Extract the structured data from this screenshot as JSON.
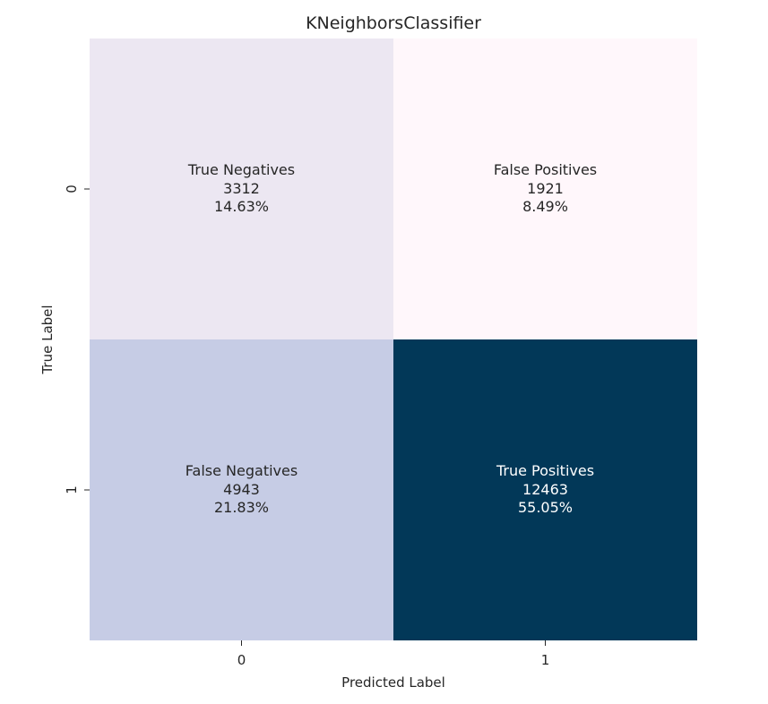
{
  "chart_data": {
    "type": "heatmap",
    "title": "KNeighborsClassifier",
    "xlabel": "Predicted Label",
    "ylabel": "True Label",
    "x_categories": [
      "0",
      "1"
    ],
    "y_categories": [
      "0",
      "1"
    ],
    "cells": [
      {
        "row": 0,
        "col": 0,
        "name": "True Negatives",
        "count": "3312",
        "percent": "14.63%",
        "value": 3312,
        "color": "#ece7f2",
        "text_color": "#262626"
      },
      {
        "row": 0,
        "col": 1,
        "name": "False Positives",
        "count": "1921",
        "percent": "8.49%",
        "value": 1921,
        "color": "#fff7fb",
        "text_color": "#262626"
      },
      {
        "row": 1,
        "col": 0,
        "name": "False Negatives",
        "count": "4943",
        "percent": "21.83%",
        "value": 4943,
        "color": "#c6cce5",
        "text_color": "#262626"
      },
      {
        "row": 1,
        "col": 1,
        "name": "True Positives",
        "count": "12463",
        "percent": "55.05%",
        "value": 12463,
        "color": "#023858",
        "text_color": "#ffffff"
      }
    ],
    "colorbar": false,
    "grid": false
  }
}
